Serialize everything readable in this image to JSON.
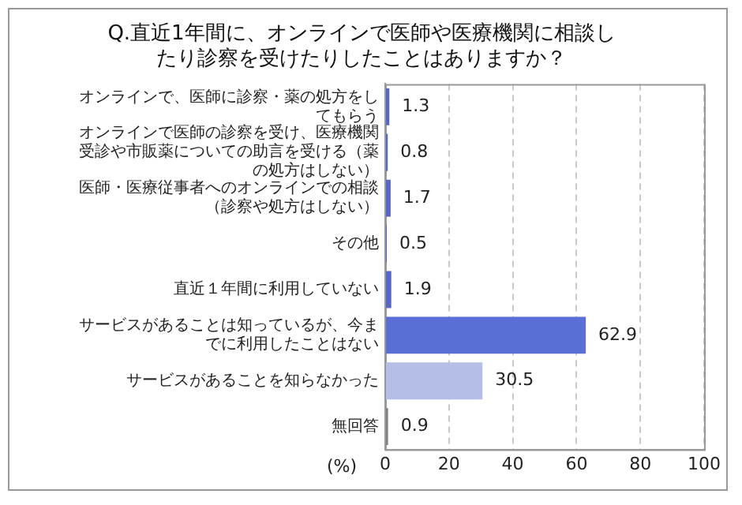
{
  "chart_data": {
    "type": "bar",
    "orientation": "horizontal",
    "title": "Q.直近1年間に、オンラインで医師や医療機関に相談したり診察を受けたりしたことはありますか？",
    "xlabel": "(%)",
    "categories": [
      "オンラインで、医師に診察・薬の処方をしてもらう",
      "オンラインで医師の診察を受け、医療機関受診や市販薬についての助言を受ける（薬の処方はしない）",
      "医師・医療従事者へのオンラインでの相談（診察や処方はしない）",
      "その他",
      "直近１年間に利用していない",
      "サービスがあることは知っているが、今までに利用したことはない",
      "サービスがあることを知らなかった",
      "無回答"
    ],
    "values": [
      1.3,
      0.8,
      1.7,
      0.5,
      1.9,
      62.9,
      30.5,
      0.9
    ],
    "colors": [
      "#5566c8",
      "#5566c8",
      "#5566c8",
      "#5566c8",
      "#5566c8",
      "#5a6fd6",
      "#b4bee6",
      "#7f7f7f"
    ],
    "xlim": [
      0,
      100
    ],
    "xticks": [
      0,
      20,
      40,
      60,
      80,
      100
    ],
    "grid": "x",
    "data_labels": true
  }
}
